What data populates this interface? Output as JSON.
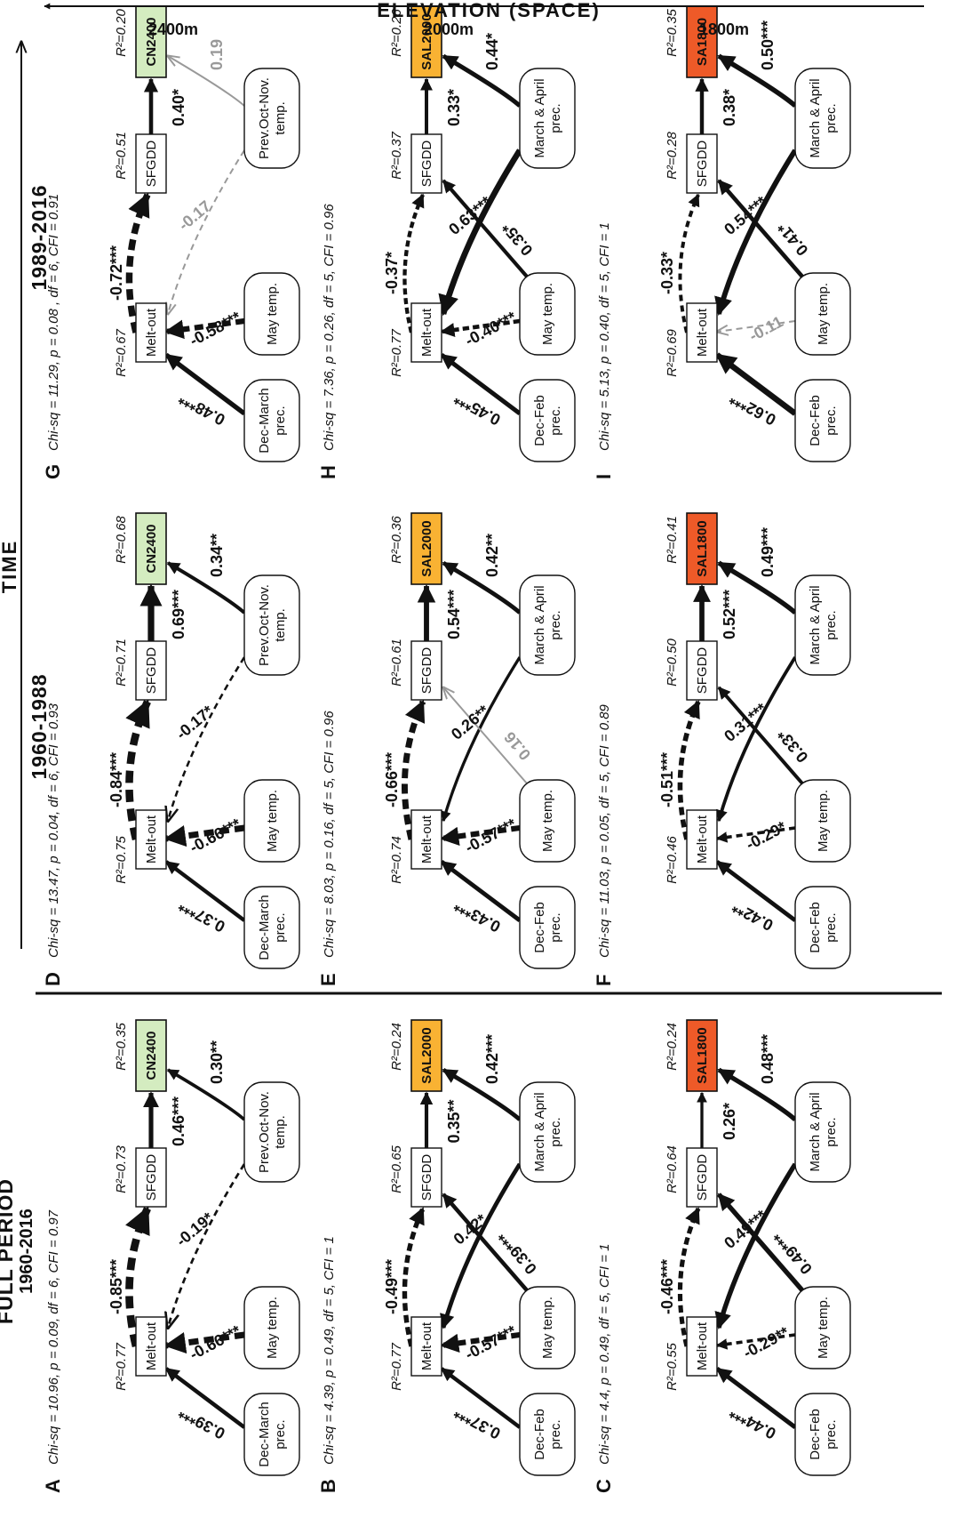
{
  "axes": {
    "time_label": "TIME",
    "elevation_label": "ELEVATION (SPACE)",
    "elevations": [
      "2400m",
      "2000m",
      "1800m"
    ]
  },
  "periods": [
    {
      "years": "1960-2016",
      "label": "FULL PERIOD"
    },
    {
      "years": "1960-1988",
      "label": ""
    },
    {
      "years": "1989-2016",
      "label": ""
    }
  ],
  "panels": [
    {
      "id": "A",
      "fit": "Chi-sq = 10.96, p = 0.09, df = 6, CFI = 0.97",
      "winter": "Dec-March prec.",
      "may": "May temp.",
      "third": "Prev.Oct-Nov. temp.",
      "response": "CN2400",
      "paths": {
        "winter_melt": "0.39***",
        "may_melt": "-0.66***",
        "third_melt": "-0.19*",
        "melt_sfgdd": "-0.85***",
        "may_sfgdd": "",
        "third_resp": "0.30**",
        "sfgdd_resp": "0.46***"
      },
      "r2": {
        "melt": "R²=0.77",
        "sfgdd": "R²=0.73",
        "resp": "R²=0.35"
      }
    },
    {
      "id": "B",
      "fit": "Chi-sq = 4.39, p = 0.49, df = 5, CFI = 1",
      "winter": "Dec-Feb prec.",
      "may": "May temp.",
      "third": "March & April prec.",
      "response": "SAL2000",
      "paths": {
        "winter_melt": "0.37***",
        "may_melt": "-0.57***",
        "third_melt": "0.42*",
        "melt_sfgdd": "-0.49***",
        "may_sfgdd": "0.39***",
        "third_resp": "0.42***",
        "sfgdd_resp": "0.35**"
      },
      "r2": {
        "melt": "R²=0.77",
        "sfgdd": "R²=0.65",
        "resp": "R²=0.24"
      }
    },
    {
      "id": "C",
      "fit": "Chi-sq = 4.4, p = 0.49, df = 5, CFI = 1",
      "winter": "Dec-Feb prec.",
      "may": "May temp.",
      "third": "March & April prec.",
      "response": "SAL1800",
      "paths": {
        "winter_melt": "0.44***",
        "may_melt": "-0.29**",
        "third_melt": "0.49***",
        "melt_sfgdd": "-0.46***",
        "may_sfgdd": "0.49***",
        "third_resp": "0.48***",
        "sfgdd_resp": "0.26*"
      },
      "r2": {
        "melt": "R²=0.55",
        "sfgdd": "R²=0.64",
        "resp": "R²=0.24"
      }
    },
    {
      "id": "D",
      "fit": "Chi-sq = 13.47, p = 0.04, df = 6, CFI = 0.93",
      "winter": "Dec-March prec.",
      "may": "May temp.",
      "third": "Prev.Oct-Nov. temp.",
      "response": "CN2400",
      "paths": {
        "winter_melt": "0.37***",
        "may_melt": "-0.66***",
        "third_melt": "-0.17*",
        "melt_sfgdd": "-0.84***",
        "may_sfgdd": "",
        "third_resp": "0.34**",
        "sfgdd_resp": "0.69***"
      },
      "r2": {
        "melt": "R²=0.75",
        "sfgdd": "R²=0.71",
        "resp": "R²=0.68"
      }
    },
    {
      "id": "E",
      "fit": "Chi-sq = 8.03, p = 0.16, df = 5, CFI = 0.96",
      "winter": "Dec-Feb prec.",
      "may": "May temp.",
      "third": "March & April prec.",
      "response": "SAL2000",
      "paths": {
        "winter_melt": "0.43***",
        "may_melt": "-0.57***",
        "third_melt": "0.26**",
        "melt_sfgdd": "-0.66***",
        "may_sfgdd": "0.16",
        "third_resp": "0.42**",
        "sfgdd_resp": "0.54***"
      },
      "r2": {
        "melt": "R²=0.74",
        "sfgdd": "R²=0.61",
        "resp": "R²=0.36"
      }
    },
    {
      "id": "F",
      "fit": "Chi-sq = 11.03, p = 0.05, df = 5, CFI = 0.89",
      "winter": "Dec-Feb prec.",
      "may": "May temp.",
      "third": "March & April prec.",
      "response": "SAL1800",
      "paths": {
        "winter_melt": "0.42**",
        "may_melt": "-0.29*",
        "third_melt": "0.31***",
        "melt_sfgdd": "-0.51***",
        "may_sfgdd": "0.33*",
        "third_resp": "0.49***",
        "sfgdd_resp": "0.52***"
      },
      "r2": {
        "melt": "R²=0.46",
        "sfgdd": "R²=0.50",
        "resp": "R²=0.41"
      }
    },
    {
      "id": "G",
      "fit": "Chi-sq = 11.29, p = 0.08 , df = 6, CFI = 0.91",
      "winter": "Dec-March prec.",
      "may": "May temp.",
      "third": "Prev.Oct-Nov. temp.",
      "response": "CN2400",
      "paths": {
        "winter_melt": "0.48***",
        "may_melt": "-0.58***",
        "third_melt": "-0.17",
        "melt_sfgdd": "-0.72***",
        "may_sfgdd": "",
        "third_resp": "0.19",
        "sfgdd_resp": "0.40*"
      },
      "r2": {
        "melt": "R²=0.67",
        "sfgdd": "R²=0.51",
        "resp": "R²=0.20"
      }
    },
    {
      "id": "H",
      "fit": "Chi-sq = 7.36, p = 0.26, df = 5, CFI = 0.96",
      "winter": "Dec-Feb prec.",
      "may": "May temp.",
      "third": "March & April prec.",
      "response": "SAL2000",
      "paths": {
        "winter_melt": "0.45***",
        "may_melt": "-0.40***",
        "third_melt": "0.63***",
        "melt_sfgdd": "-0.37*",
        "may_sfgdd": "0.35*",
        "third_resp": "0.44*",
        "sfgdd_resp": "0.33*"
      },
      "r2": {
        "melt": "R²=0.77",
        "sfgdd": "R²=0.37",
        "resp": "R²=0.26"
      }
    },
    {
      "id": "I",
      "fit": "Chi-sq = 5.13, p = 0.40, df = 5, CFI = 1",
      "winter": "Dec-Feb prec.",
      "may": "May temp.",
      "third": "March & April prec.",
      "response": "SA1800",
      "paths": {
        "winter_melt": "0.62***",
        "may_melt": "-0.11",
        "third_melt": "0.54***",
        "melt_sfgdd": "-0.33*",
        "may_sfgdd": "0.41*",
        "third_resp": "0.50***",
        "sfgdd_resp": "0.38*"
      },
      "r2": {
        "melt": "R²=0.69",
        "sfgdd": "R²=0.28",
        "resp": "R²=0.35"
      }
    }
  ],
  "common_nodes": {
    "melt": "Melt-out",
    "sfgdd": "SFGDD"
  },
  "colors": {
    "CN2400": "#d4ecc0",
    "SAL2000": "#f9b233",
    "SAL1800": "#ee5a28",
    "SA1800": "#ee5a28",
    "nonsignificant": "#999999",
    "line": "#111111"
  }
}
